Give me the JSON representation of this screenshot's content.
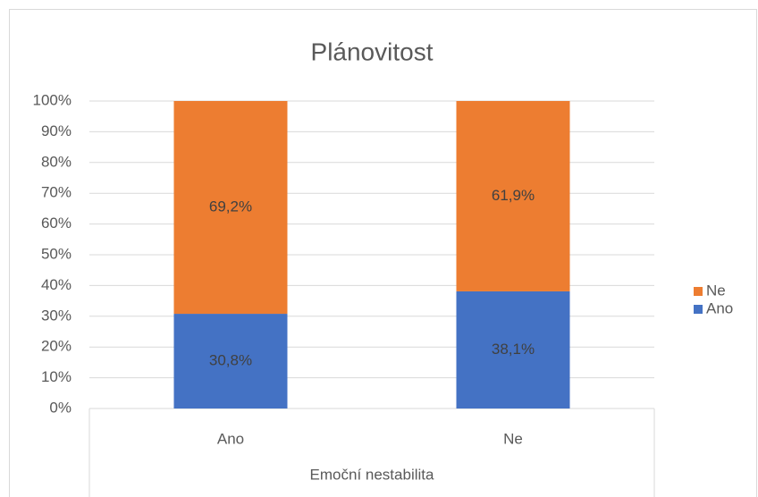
{
  "chart_data": {
    "type": "stacked_bar",
    "title": "Plánovitost",
    "x_label": "Emoční nestabilita",
    "categories": [
      "Ano",
      "Ne"
    ],
    "series": [
      {
        "name": "Ano",
        "color": "#4472c4",
        "values": [
          30.8,
          38.1
        ],
        "value_labels": [
          "30,8%",
          "38,1%"
        ]
      },
      {
        "name": "Ne",
        "color": "#ed7d31",
        "values": [
          69.2,
          61.9
        ],
        "value_labels": [
          "69,2%",
          "61,9%"
        ]
      }
    ],
    "ylim": [
      0,
      100
    ],
    "yticks": [
      {
        "value": 0,
        "label": "0%"
      },
      {
        "value": 10,
        "label": "10%"
      },
      {
        "value": 20,
        "label": "20%"
      },
      {
        "value": 30,
        "label": "30%"
      },
      {
        "value": 40,
        "label": "40%"
      },
      {
        "value": 50,
        "label": "50%"
      },
      {
        "value": 60,
        "label": "60%"
      },
      {
        "value": 70,
        "label": "70%"
      },
      {
        "value": 80,
        "label": "80%"
      },
      {
        "value": 90,
        "label": "90%"
      },
      {
        "value": 100,
        "label": "100%"
      }
    ],
    "grid": true,
    "legend": "right"
  }
}
